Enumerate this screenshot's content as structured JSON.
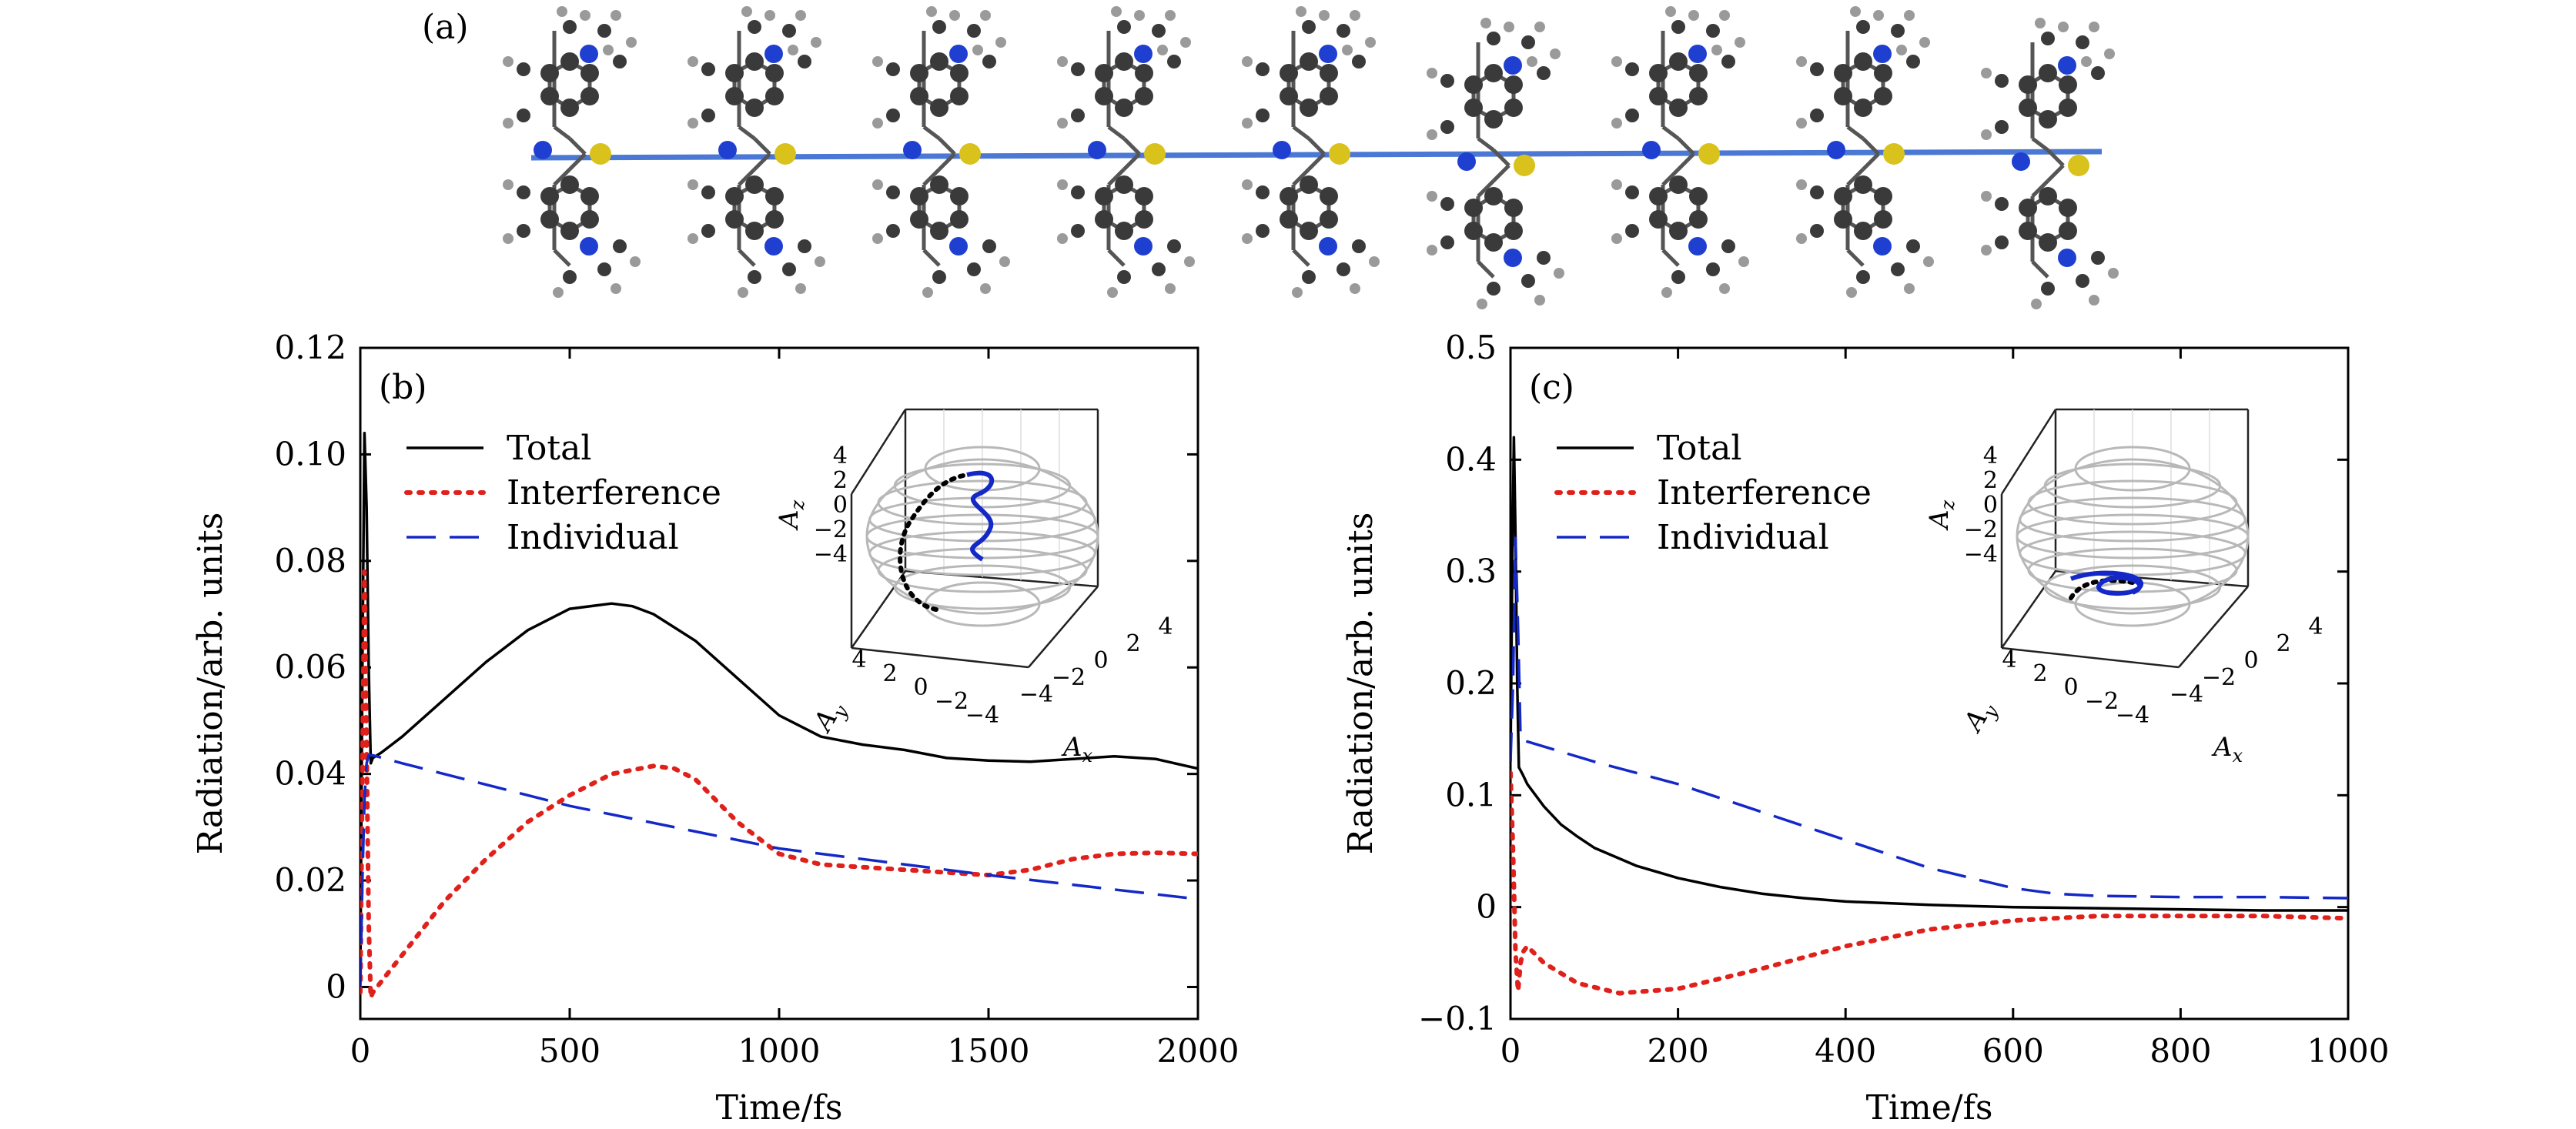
{
  "figure": {
    "panel_a_label": "(a)",
    "molecule_count": 9,
    "molecule_colors": {
      "carbon": "#3a3a3a",
      "nitrogen": "#1f3fd1",
      "sulfur": "#d9c21c",
      "hydrogen": "#9a9a9a",
      "chain": "#4a78d4"
    }
  },
  "chart_data": [
    {
      "type": "line",
      "panel_label": "(b)",
      "xlabel": "Time/fs",
      "ylabel": "Radiation/arb. units",
      "xlim": [
        0,
        2000
      ],
      "ylim": [
        -0.006,
        0.12
      ],
      "xticks": [
        0,
        500,
        1000,
        1500,
        2000
      ],
      "xtick_labels": [
        "0",
        "500",
        "1000",
        "1500",
        "2000"
      ],
      "yticks": [
        0,
        0.02,
        0.04,
        0.06,
        0.08,
        0.1,
        0.12
      ],
      "ytick_labels": [
        "0",
        "0.02",
        "0.04",
        "0.06",
        "0.08",
        "0.10",
        "0.12"
      ],
      "legend_position": "upper-left",
      "series": [
        {
          "name": "Total",
          "color": "#000000",
          "style": "solid",
          "x": [
            0,
            5,
            10,
            15,
            20,
            25,
            30,
            50,
            100,
            200,
            300,
            400,
            500,
            600,
            650,
            700,
            800,
            900,
            1000,
            1100,
            1200,
            1300,
            1400,
            1500,
            1600,
            1700,
            1800,
            1900,
            2000
          ],
          "y": [
            0.002,
            0.06,
            0.104,
            0.09,
            0.06,
            0.042,
            0.043,
            0.044,
            0.047,
            0.054,
            0.061,
            0.067,
            0.071,
            0.072,
            0.0715,
            0.07,
            0.065,
            0.058,
            0.051,
            0.047,
            0.0455,
            0.0445,
            0.043,
            0.0425,
            0.0423,
            0.0428,
            0.0433,
            0.0428,
            0.041
          ]
        },
        {
          "name": "Interference",
          "color": "#e0201b",
          "style": "dotted",
          "x": [
            0,
            5,
            10,
            15,
            20,
            25,
            30,
            40,
            60,
            100,
            150,
            200,
            300,
            400,
            500,
            600,
            700,
            750,
            800,
            900,
            1000,
            1100,
            1200,
            1300,
            1400,
            1500,
            1600,
            1700,
            1800,
            1900,
            2000
          ],
          "y": [
            -0.001,
            0.04,
            0.078,
            0.045,
            0.012,
            -0.002,
            -0.001,
            0.0,
            0.002,
            0.006,
            0.011,
            0.016,
            0.024,
            0.031,
            0.036,
            0.04,
            0.0415,
            0.041,
            0.039,
            0.031,
            0.025,
            0.023,
            0.0225,
            0.022,
            0.0215,
            0.021,
            0.022,
            0.024,
            0.025,
            0.0252,
            0.025
          ]
        },
        {
          "name": "Individual",
          "color": "#1428c8",
          "style": "dashed",
          "x": [
            0,
            5,
            10,
            15,
            20,
            30,
            100,
            500,
            1000,
            1500,
            2000
          ],
          "y": [
            0.0,
            0.02,
            0.035,
            0.042,
            0.0435,
            0.0435,
            0.042,
            0.034,
            0.026,
            0.021,
            0.0165
          ]
        }
      ],
      "inset": {
        "xlabel": "A",
        "xlabel_sub": "x",
        "ylabel": "A",
        "ylabel_sub": "y",
        "zlabel": "A",
        "zlabel_sub": "z",
        "ticks": [
          "4",
          "2",
          "0",
          "−2",
          "−4"
        ],
        "xticks": [
          "−4",
          "−2",
          "0",
          "2",
          "4"
        ],
        "yticks": [
          "4",
          "2",
          "0",
          "−2",
          "−4"
        ]
      }
    },
    {
      "type": "line",
      "panel_label": "(c)",
      "xlabel": "Time/fs",
      "ylabel": "Radiation/arb. units",
      "xlim": [
        0,
        1000
      ],
      "ylim": [
        -0.1,
        0.5
      ],
      "xticks": [
        0,
        200,
        400,
        600,
        800,
        1000
      ],
      "xtick_labels": [
        "0",
        "200",
        "400",
        "600",
        "800",
        "1000"
      ],
      "yticks": [
        -0.1,
        0,
        0.1,
        0.2,
        0.3,
        0.4,
        0.5
      ],
      "ytick_labels": [
        "−0.1",
        "0",
        "0.1",
        "0.2",
        "0.3",
        "0.4",
        "0.5"
      ],
      "legend_position": "upper-left",
      "series": [
        {
          "name": "Total",
          "color": "#000000",
          "style": "solid",
          "x": [
            0,
            2,
            4,
            6,
            8,
            10,
            15,
            20,
            40,
            60,
            80,
            100,
            150,
            200,
            250,
            300,
            350,
            400,
            500,
            600,
            700,
            800,
            900,
            1000
          ],
          "y": [
            0.13,
            0.3,
            0.42,
            0.33,
            0.2,
            0.125,
            0.118,
            0.11,
            0.09,
            0.074,
            0.063,
            0.053,
            0.037,
            0.026,
            0.018,
            0.012,
            0.008,
            0.005,
            0.002,
            0.0,
            -0.001,
            -0.002,
            -0.003,
            -0.003
          ]
        },
        {
          "name": "Interference",
          "color": "#e0201b",
          "style": "dotted",
          "x": [
            0,
            3,
            6,
            9,
            12,
            15,
            20,
            40,
            80,
            130,
            200,
            300,
            400,
            500,
            600,
            700,
            800,
            900,
            1000
          ],
          "y": [
            0.12,
            0.05,
            -0.04,
            -0.075,
            -0.05,
            -0.04,
            -0.035,
            -0.05,
            -0.068,
            -0.077,
            -0.073,
            -0.055,
            -0.035,
            -0.02,
            -0.012,
            -0.008,
            -0.008,
            -0.008,
            -0.01
          ]
        },
        {
          "name": "Individual",
          "color": "#1428c8",
          "style": "dashed",
          "x": [
            0,
            3,
            6,
            9,
            12,
            20,
            100,
            200,
            300,
            400,
            500,
            600,
            650,
            700,
            800,
            900,
            1000
          ],
          "y": [
            0.13,
            0.2,
            0.33,
            0.25,
            0.15,
            0.148,
            0.13,
            0.11,
            0.085,
            0.06,
            0.035,
            0.017,
            0.012,
            0.01,
            0.009,
            0.009,
            0.008
          ]
        }
      ],
      "inset": {
        "xlabel": "A",
        "xlabel_sub": "x",
        "ylabel": "A",
        "ylabel_sub": "y",
        "zlabel": "A",
        "zlabel_sub": "z",
        "ticks": [
          "4",
          "2",
          "0",
          "−2",
          "−4"
        ],
        "xticks": [
          "−4",
          "−2",
          "0",
          "2",
          "4"
        ],
        "yticks": [
          "4",
          "2",
          "0",
          "−2",
          "−4"
        ]
      }
    }
  ]
}
